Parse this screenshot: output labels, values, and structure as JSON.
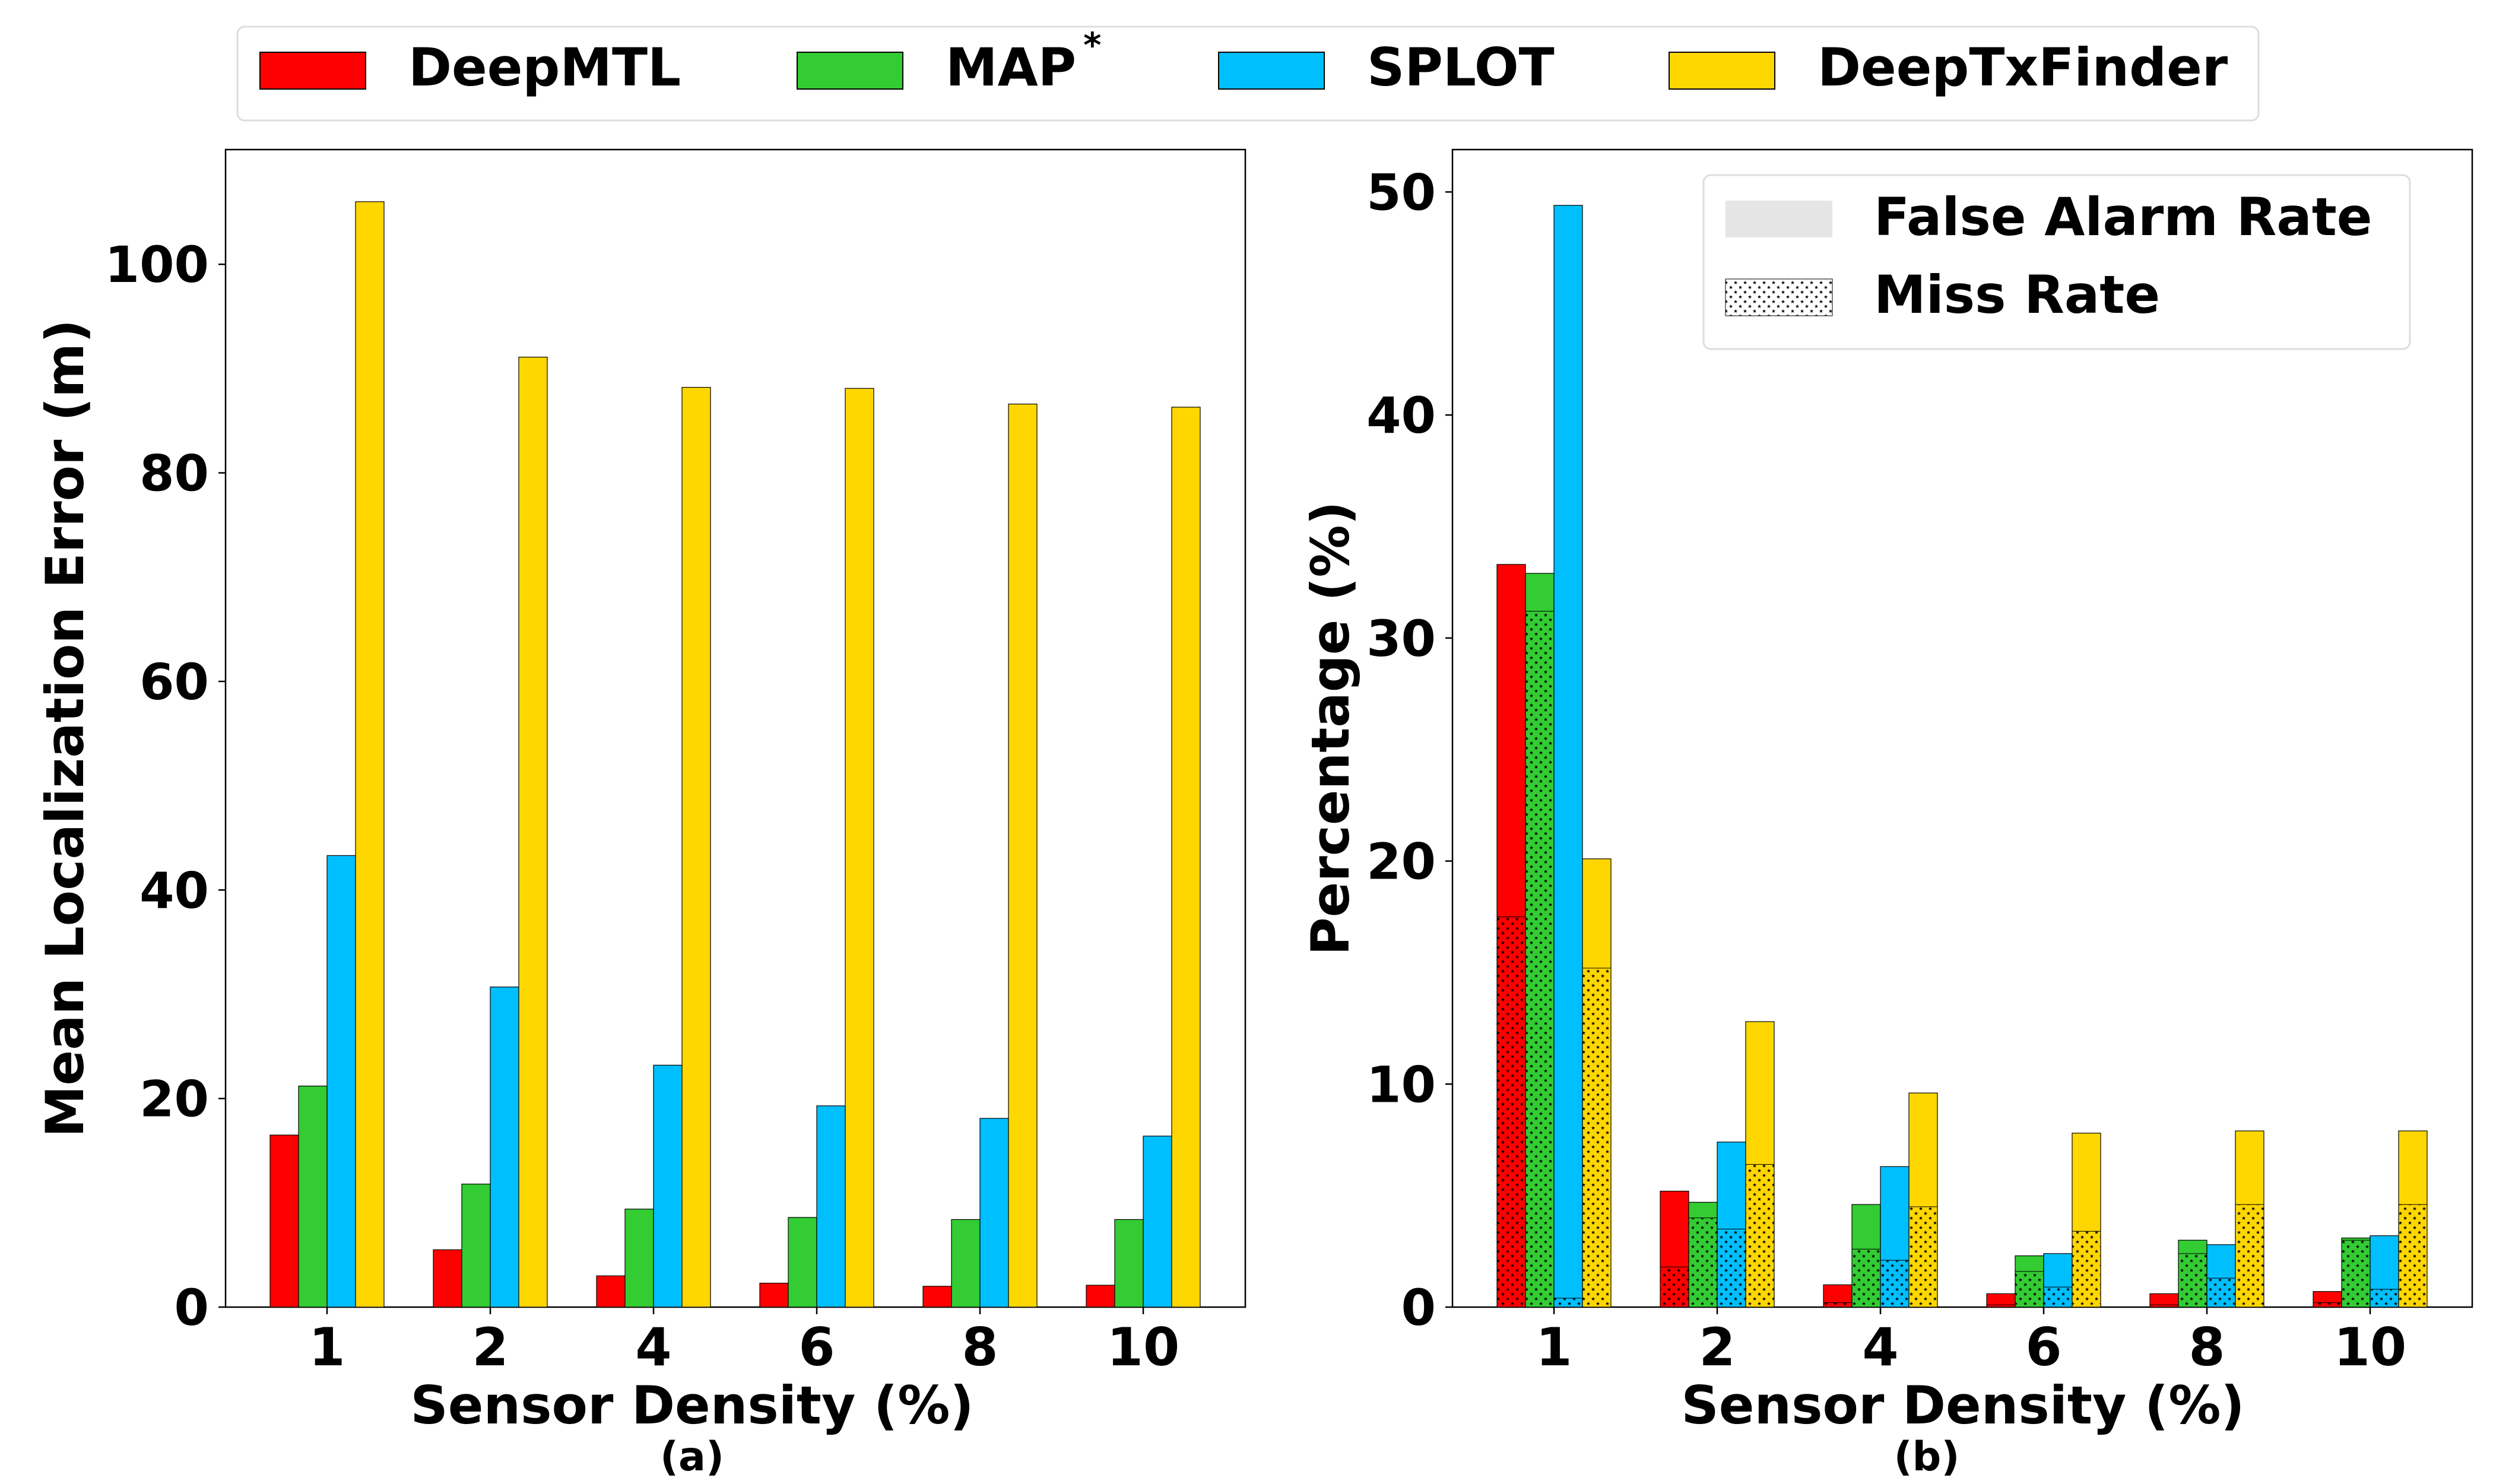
{
  "legend": {
    "methods": [
      {
        "label": "DeepMTL",
        "color": "#FF0000"
      },
      {
        "label": "MAP",
        "sup": "*",
        "color": "#33CC33"
      },
      {
        "label": "SPLOT",
        "color": "#00BFFF"
      },
      {
        "label": "DeepTxFinder",
        "color": "#FFD700"
      }
    ],
    "rates": [
      {
        "label": "False Alarm Rate",
        "pattern": "solid"
      },
      {
        "label": "Miss Rate",
        "pattern": "stars"
      }
    ]
  },
  "chart_data": [
    {
      "type": "bar",
      "caption": "(a)",
      "xlabel": "Sensor Density (%)",
      "ylabel": "Mean Localization Error (m)",
      "categories": [
        "1",
        "2",
        "4",
        "6",
        "8",
        "10"
      ],
      "ylim": [
        0,
        111
      ],
      "yticks": [
        0,
        20,
        40,
        60,
        80,
        100
      ],
      "series": [
        {
          "name": "DeepMTL",
          "values": [
            16.5,
            5.5,
            3.0,
            2.3,
            2.0,
            2.1
          ]
        },
        {
          "name": "MAP*",
          "values": [
            21.2,
            11.8,
            9.4,
            8.6,
            8.4,
            8.4
          ]
        },
        {
          "name": "SPLOT",
          "values": [
            43.3,
            30.7,
            23.2,
            19.3,
            18.1,
            16.4
          ]
        },
        {
          "name": "DeepTxFinder",
          "values": [
            106.0,
            91.1,
            88.2,
            88.1,
            86.6,
            86.3
          ]
        }
      ]
    },
    {
      "type": "bar",
      "stacked": true,
      "caption": "(b)",
      "xlabel": "Sensor Density (%)",
      "ylabel": "Percentage (%)",
      "categories": [
        "1",
        "2",
        "4",
        "6",
        "8",
        "10"
      ],
      "ylim": [
        0,
        51.9
      ],
      "yticks": [
        0,
        10,
        20,
        30,
        40,
        50
      ],
      "legend_position": "top-right",
      "series": [
        {
          "name": "DeepMTL",
          "miss_rate": [
            17.5,
            1.8,
            0.2,
            0.1,
            0.1,
            0.2
          ],
          "total": [
            33.3,
            5.2,
            1.0,
            0.6,
            0.6,
            0.7
          ]
        },
        {
          "name": "MAP*",
          "miss_rate": [
            31.2,
            4.0,
            2.6,
            1.6,
            2.4,
            3.0
          ],
          "total": [
            32.9,
            4.7,
            4.6,
            2.3,
            3.0,
            3.1
          ]
        },
        {
          "name": "SPLOT",
          "miss_rate": [
            0.4,
            3.5,
            2.1,
            0.9,
            1.3,
            0.8
          ],
          "total": [
            49.4,
            7.4,
            6.3,
            2.4,
            2.8,
            3.2
          ]
        },
        {
          "name": "DeepTxFinder",
          "miss_rate": [
            15.2,
            6.4,
            4.5,
            3.4,
            4.6,
            4.6
          ],
          "total": [
            20.1,
            12.8,
            9.6,
            7.8,
            7.9,
            7.9
          ]
        }
      ]
    }
  ]
}
